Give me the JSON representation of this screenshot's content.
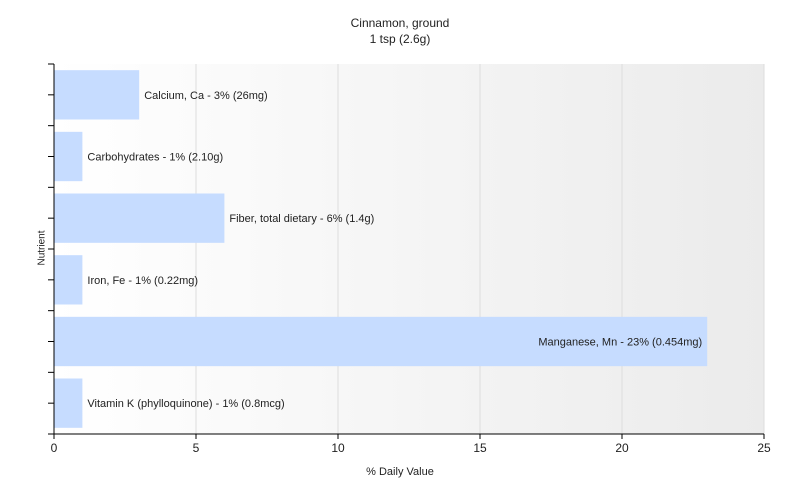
{
  "chart_data": {
    "type": "bar",
    "orientation": "horizontal",
    "title": "Cinnamon, ground",
    "subtitle": "1 tsp (2.6g)",
    "xlabel": "% Daily Value",
    "ylabel": "Nutrient",
    "xlim": [
      0,
      25
    ],
    "xticks": [
      0,
      5,
      10,
      15,
      20,
      25
    ],
    "grid": true,
    "bar_color": "#c6dcff",
    "categories": [
      "Calcium, Ca",
      "Carbohydrates",
      "Fiber, total dietary",
      "Iron, Fe",
      "Manganese, Mn",
      "Vitamin K (phylloquinone)"
    ],
    "values": [
      3,
      1,
      6,
      1,
      23,
      1
    ],
    "data_labels": [
      "Calcium, Ca - 3% (26mg)",
      "Carbohydrates - 1% (2.10g)",
      "Fiber, total dietary - 6% (1.4g)",
      "Iron, Fe - 1% (0.22mg)",
      "Manganese, Mn - 23% (0.454mg)",
      "Vitamin K (phylloquinone) - 1% (0.8mcg)"
    ]
  }
}
